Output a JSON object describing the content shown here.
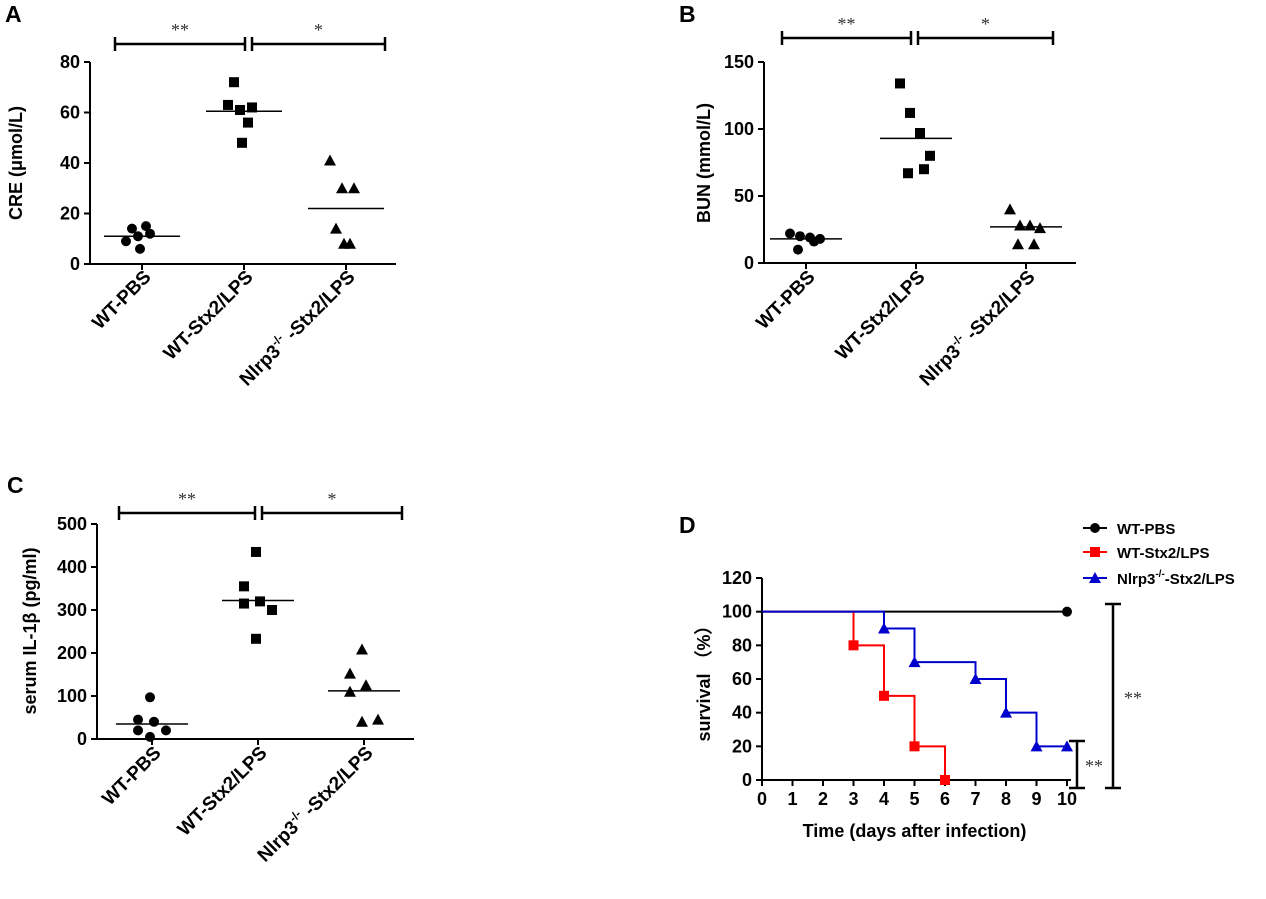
{
  "chart_data": [
    {
      "panel": "A",
      "type": "scatter",
      "ylabel": "CRE (μmol/L)",
      "ylim": [
        0,
        80
      ],
      "yticks": [
        0,
        20,
        40,
        60,
        80
      ],
      "categories": [
        {
          "label": "WT-PBS",
          "marker": "circle",
          "values": [
            9,
            11,
            12,
            14,
            15,
            6
          ],
          "median": 11
        },
        {
          "label": "WT-Stx2/LPS",
          "marker": "square",
          "values": [
            63,
            61,
            62,
            72,
            56,
            48
          ],
          "median": 60.5
        },
        {
          "label": "Nlrp3-/- -Stx2/LPS",
          "label_main": "Nlrp3",
          "label_sup": "-/-",
          "label_tail": " -Stx2/LPS",
          "marker": "triangle",
          "values": [
            41,
            30,
            30,
            14,
            8,
            8
          ],
          "median": 22
        }
      ],
      "significance": [
        {
          "from": 0,
          "to": 1,
          "label": "**"
        },
        {
          "from": 1,
          "to": 2,
          "label": "*"
        }
      ]
    },
    {
      "panel": "B",
      "type": "scatter",
      "ylabel": "BUN (mmol/L)",
      "ylim": [
        0,
        150
      ],
      "yticks": [
        0,
        50,
        100,
        150
      ],
      "categories": [
        {
          "label": "WT-PBS",
          "marker": "circle",
          "values": [
            22,
            20,
            19,
            18,
            10,
            16
          ],
          "median": 18
        },
        {
          "label": "WT-Stx2/LPS",
          "marker": "square",
          "values": [
            134,
            112,
            97,
            80,
            67,
            70
          ],
          "median": 93
        },
        {
          "label": "Nlrp3-/- -Stx2/LPS",
          "label_main": "Nlrp3",
          "label_sup": "-/-",
          "label_tail": " -Stx2/LPS",
          "marker": "triangle",
          "values": [
            40,
            28,
            28,
            26,
            14,
            14
          ],
          "median": 27
        }
      ],
      "significance": [
        {
          "from": 0,
          "to": 1,
          "label": "**"
        },
        {
          "from": 1,
          "to": 2,
          "label": "*"
        }
      ]
    },
    {
      "panel": "C",
      "type": "scatter",
      "ylabel": "serum IL-1β  (pg/ml)",
      "ylim": [
        0,
        500
      ],
      "yticks": [
        0,
        100,
        200,
        300,
        400,
        500
      ],
      "categories": [
        {
          "label": "WT-PBS",
          "marker": "circle",
          "values": [
            97,
            45,
            40,
            20,
            20,
            5
          ],
          "median": 35
        },
        {
          "label": "WT-Stx2/LPS",
          "marker": "square",
          "values": [
            435,
            355,
            320,
            315,
            300,
            233
          ],
          "median": 322
        },
        {
          "label": "Nlrp3-/- -Stx2/LPS",
          "label_main": "Nlrp3",
          "label_sup": "-/-",
          "label_tail": " -Stx2/LPS",
          "marker": "triangle",
          "values": [
            208,
            152,
            125,
            110,
            45,
            40
          ],
          "median": 112
        }
      ],
      "significance": [
        {
          "from": 0,
          "to": 1,
          "label": "**"
        },
        {
          "from": 1,
          "to": 2,
          "label": "*"
        }
      ]
    },
    {
      "panel": "D",
      "type": "line",
      "step": true,
      "ylabel": "survival  （%）",
      "xlabel": "Time (days after infection)",
      "xlim": [
        0,
        10
      ],
      "ylim": [
        0,
        120
      ],
      "xticks": [
        0,
        1,
        2,
        3,
        4,
        5,
        6,
        7,
        8,
        9,
        10
      ],
      "yticks": [
        0,
        20,
        40,
        60,
        80,
        100,
        120
      ],
      "legend_position": "top-right",
      "series": [
        {
          "name": "WT-PBS",
          "color": "#000000",
          "marker": "circle",
          "points": [
            [
              0,
              100
            ],
            [
              10,
              100
            ]
          ]
        },
        {
          "name": "WT-Stx2/LPS",
          "color": "#ff0000",
          "marker": "square",
          "points": [
            [
              0,
              100
            ],
            [
              3,
              80
            ],
            [
              4,
              50
            ],
            [
              5,
              20
            ],
            [
              6,
              0
            ]
          ]
        },
        {
          "name": "Nlrp3-/--Stx2/LPS",
          "name_main": "Nlrp3",
          "name_sup": "-/-",
          "name_tail": "-Stx2/LPS",
          "color": "#0000cc",
          "marker": "triangle",
          "points": [
            [
              0,
              100
            ],
            [
              4,
              90
            ],
            [
              5,
              70
            ],
            [
              7,
              60
            ],
            [
              8,
              40
            ],
            [
              9,
              20
            ],
            [
              10,
              20
            ]
          ]
        }
      ],
      "significance": [
        {
          "label": "**",
          "between": "WT-PBS vs WT-Stx2/LPS"
        },
        {
          "label": "**",
          "between": "WT-Stx2/LPS vs Nlrp3-/--Stx2/LPS"
        }
      ]
    }
  ]
}
